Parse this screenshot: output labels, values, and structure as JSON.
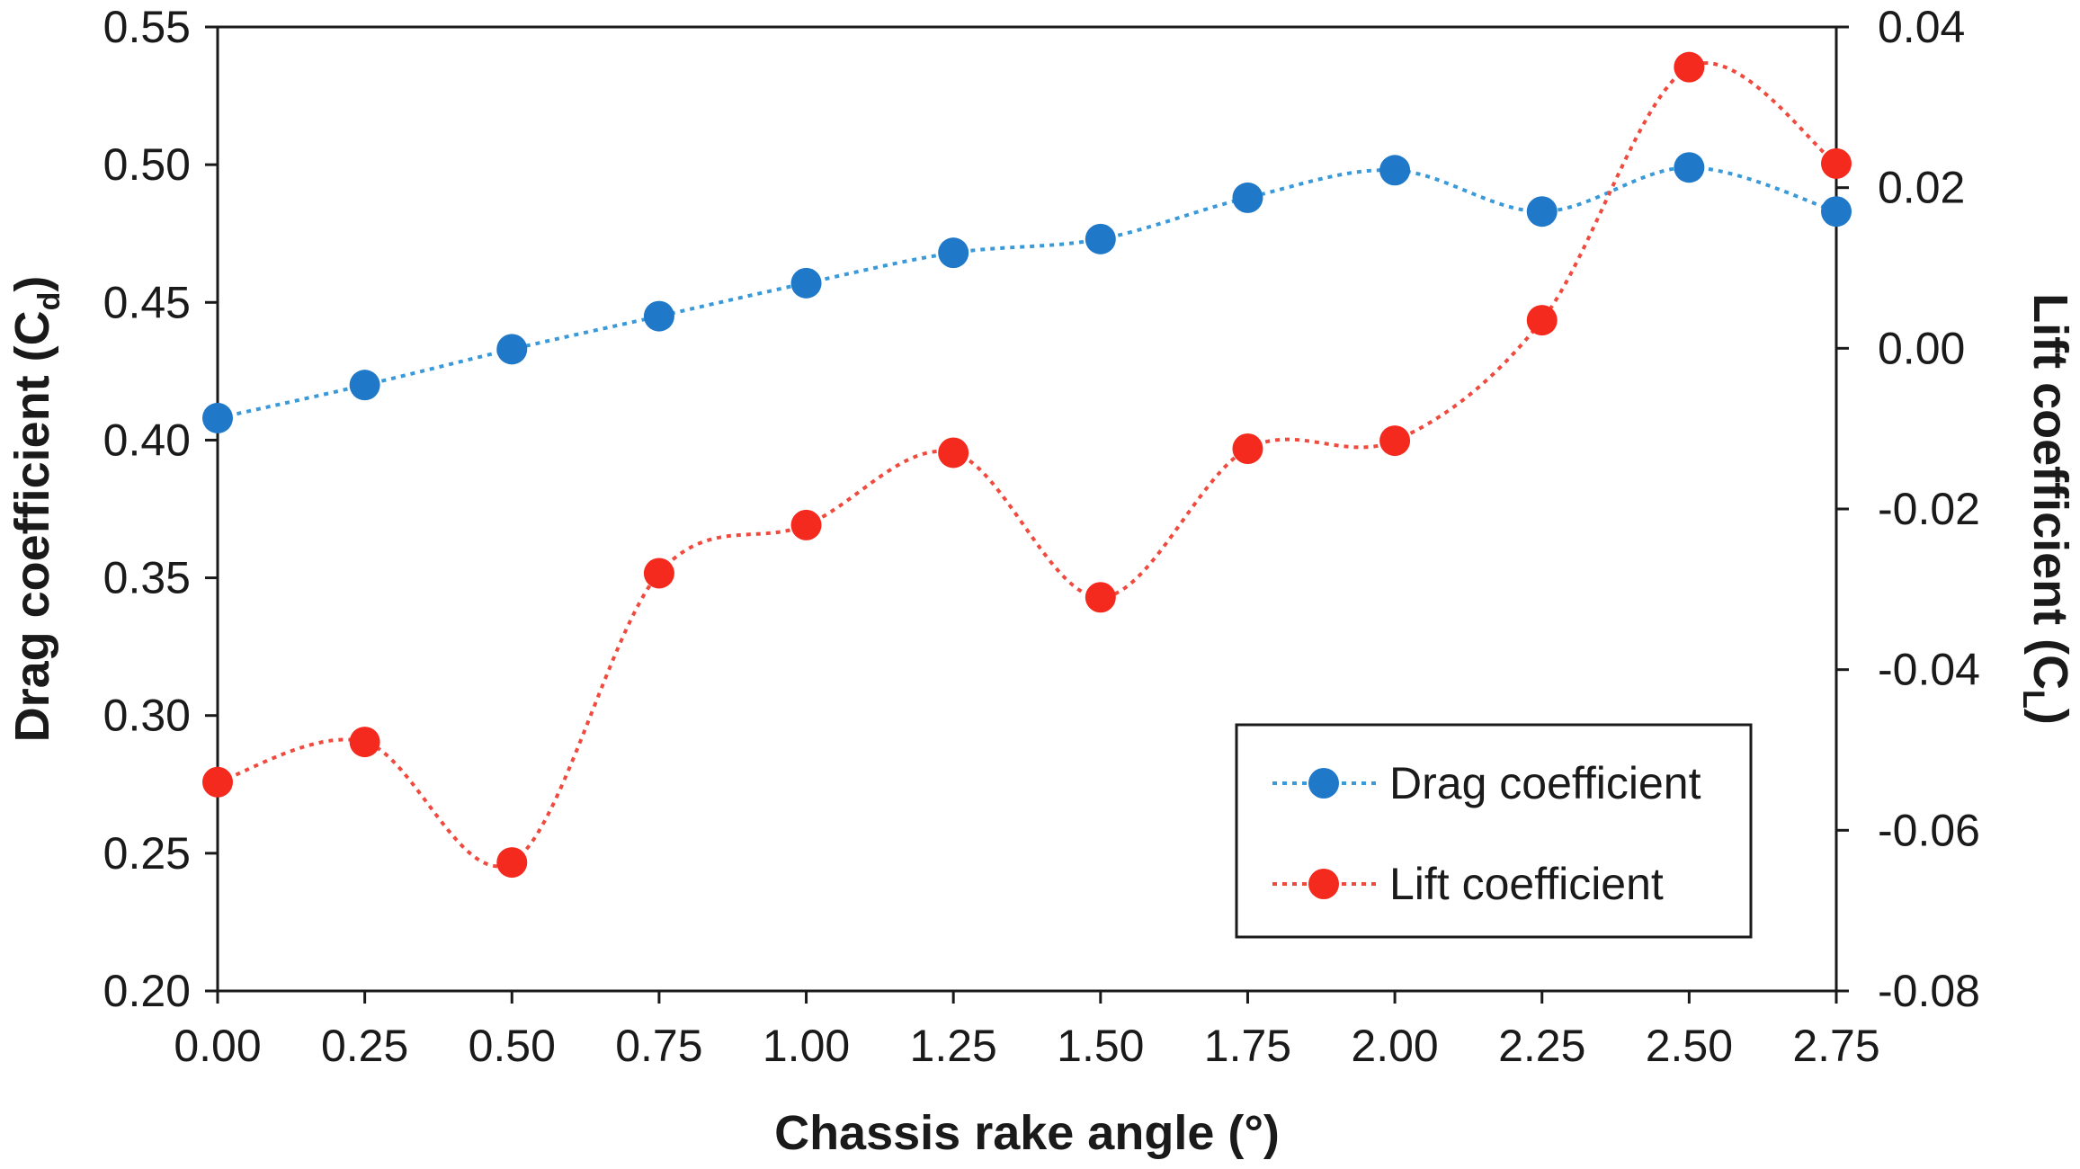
{
  "chart_data": {
    "type": "line",
    "xlabel": "Chassis rake angle (°)",
    "ylabel_left": {
      "text": "Drag coefficient (C",
      "sub": "d",
      "close": ")"
    },
    "ylabel_right": {
      "text": "Lift coefficient (C",
      "sub": "L",
      "close": ")"
    },
    "x": [
      0.0,
      0.25,
      0.5,
      0.75,
      1.0,
      1.25,
      1.5,
      1.75,
      2.0,
      2.25,
      2.5,
      2.75
    ],
    "x_tick_labels": [
      "0.00",
      "0.25",
      "0.50",
      "0.75",
      "1.00",
      "1.25",
      "1.50",
      "1.75",
      "2.00",
      "2.25",
      "2.50",
      "2.75"
    ],
    "xlim": [
      0,
      2.75
    ],
    "ylim_left": [
      0.2,
      0.55
    ],
    "y_left_ticks": [
      "0.20",
      "0.25",
      "0.30",
      "0.35",
      "0.40",
      "0.45",
      "0.50",
      "0.55"
    ],
    "ylim_right": [
      -0.08,
      0.04
    ],
    "y_right_ticks": [
      "-0.08",
      "-0.06",
      "-0.04",
      "-0.02",
      "0.00",
      "0.02",
      "0.04"
    ],
    "grid": false,
    "legend_position": "bottom-right",
    "series": [
      {
        "name": "Drag coefficient",
        "axis": "left",
        "color": "#1f78c8",
        "line_color": "#3a9ad9",
        "style": "dotted",
        "values": [
          0.408,
          0.42,
          0.433,
          0.445,
          0.457,
          0.468,
          0.473,
          0.488,
          0.498,
          0.483,
          0.499,
          0.483
        ]
      },
      {
        "name": "Lift coefficient",
        "axis": "right",
        "color": "#f52a1e",
        "line_color": "#f04a3e",
        "style": "dotted",
        "values": [
          -0.054,
          -0.049,
          -0.064,
          -0.028,
          -0.022,
          -0.013,
          -0.031,
          -0.0125,
          -0.0115,
          0.0035,
          0.035,
          0.023
        ]
      }
    ]
  }
}
